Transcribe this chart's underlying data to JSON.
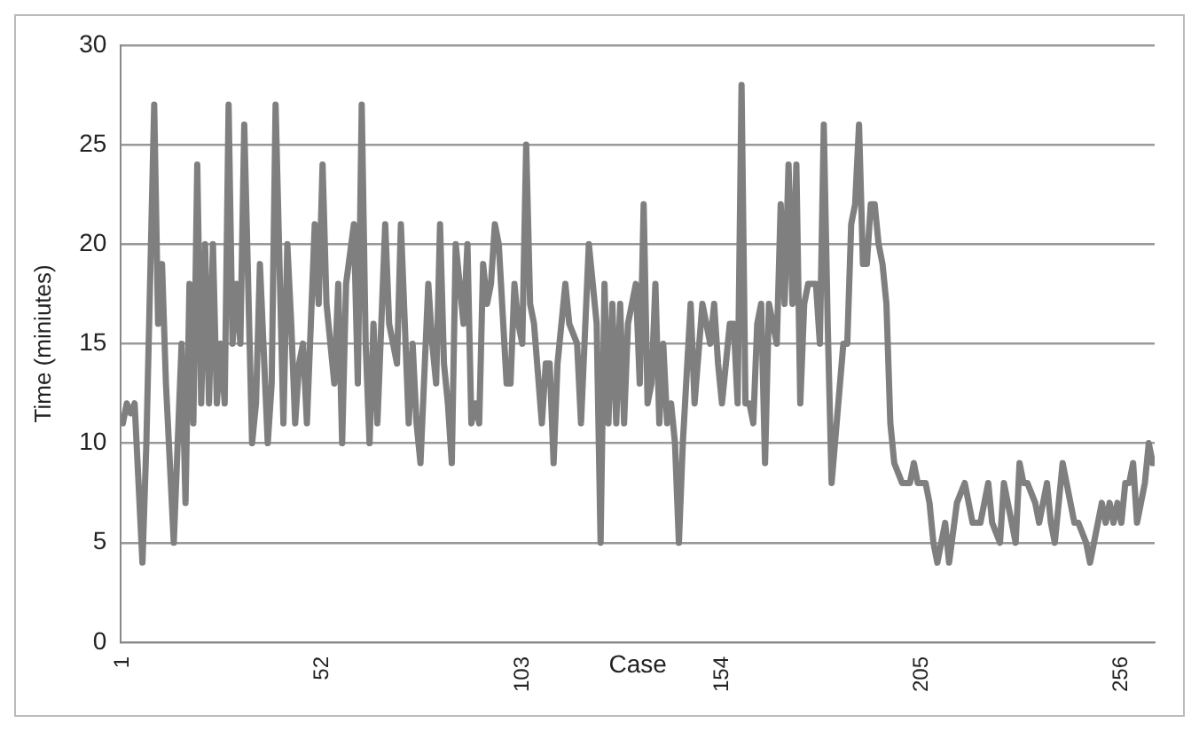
{
  "chart_data": {
    "type": "line",
    "xlabel": "Case",
    "ylabel": "Time (miniutes)",
    "x": [
      1,
      2,
      3,
      4,
      6,
      7,
      9,
      10,
      11,
      12,
      14,
      16,
      17,
      18,
      19,
      20,
      21,
      22,
      23,
      24,
      25,
      26,
      27,
      28,
      29,
      30,
      31,
      32,
      34,
      35,
      36,
      38,
      39,
      40,
      42,
      43,
      44,
      45,
      46,
      47,
      48,
      50,
      51,
      52,
      53,
      55,
      56,
      57,
      58,
      60,
      61,
      62,
      63,
      64,
      65,
      66,
      68,
      69,
      71,
      72,
      74,
      75,
      76,
      77,
      79,
      80,
      81,
      82,
      83,
      84,
      85,
      86,
      88,
      89,
      90,
      91,
      92,
      93,
      94,
      95,
      96,
      97,
      99,
      100,
      101,
      102,
      103,
      104,
      105,
      106,
      108,
      109,
      110,
      111,
      112,
      114,
      115,
      117,
      118,
      120,
      122,
      123,
      124,
      125,
      126,
      127,
      128,
      129,
      130,
      132,
      133,
      134,
      135,
      136,
      137,
      138,
      139,
      140,
      141,
      142,
      143,
      144,
      146,
      147,
      149,
      151,
      152,
      153,
      154,
      156,
      157,
      158,
      159,
      160,
      161,
      162,
      163,
      164,
      165,
      166,
      168,
      169,
      170,
      171,
      172,
      173,
      174,
      175,
      176,
      178,
      179,
      180,
      181,
      182,
      185,
      186,
      187,
      188,
      189,
      190,
      191,
      192,
      193,
      194,
      195,
      196,
      197,
      198,
      200,
      201,
      202,
      203,
      204,
      206,
      207,
      208,
      209,
      210,
      211,
      212,
      214,
      216,
      217,
      218,
      220,
      221,
      222,
      223,
      225,
      226,
      227,
      228,
      229,
      230,
      231,
      232,
      234,
      235,
      236,
      237,
      238,
      239,
      241,
      242,
      243,
      244,
      245,
      247,
      248,
      249,
      250,
      251,
      252,
      253,
      254,
      255,
      256,
      257,
      258,
      259,
      260,
      261,
      262,
      263,
      264
    ],
    "values": [
      11,
      12,
      11.5,
      12,
      4,
      10,
      27,
      16,
      19,
      13,
      5,
      15,
      7,
      18,
      11,
      24,
      12,
      20,
      12,
      20,
      12,
      15,
      12,
      27,
      15,
      18,
      15,
      26,
      10,
      12,
      19,
      10,
      13,
      27,
      11,
      20,
      16,
      11,
      14,
      15,
      11,
      21,
      17,
      24,
      17,
      13,
      18,
      10,
      18,
      21,
      13,
      27,
      15,
      10,
      16,
      11,
      21,
      16,
      14,
      21,
      11,
      15,
      11,
      9,
      18,
      15,
      13,
      21,
      14,
      12,
      9,
      20,
      16,
      20,
      11,
      12,
      11,
      19,
      17,
      18,
      21,
      20,
      13,
      13,
      18,
      16,
      15,
      25,
      17,
      16,
      11,
      14,
      14,
      9,
      14,
      18,
      16,
      15,
      11,
      20,
      16,
      5,
      18,
      11,
      17,
      11,
      17,
      11,
      16,
      18,
      13,
      22,
      12,
      13,
      18,
      11,
      15,
      11,
      12,
      10,
      5,
      10,
      17,
      12,
      17,
      15,
      17,
      14,
      12,
      16,
      16,
      12,
      28,
      12,
      12,
      11,
      16,
      17,
      9,
      17,
      15,
      22,
      17,
      24,
      17,
      24,
      12,
      17,
      18,
      18,
      15,
      26,
      16,
      8,
      15,
      15,
      21,
      22,
      26,
      19,
      19,
      22,
      22,
      20,
      19,
      17,
      11,
      9,
      8,
      8,
      8,
      9,
      8,
      8,
      7,
      5,
      4,
      5,
      6,
      4,
      7,
      8,
      7,
      6,
      6,
      7,
      8,
      6,
      5,
      8,
      7,
      6,
      5,
      9,
      8,
      8,
      7,
      6,
      7,
      8,
      6,
      5,
      9,
      8,
      7,
      6,
      6,
      5,
      4,
      5,
      6,
      7,
      6,
      7,
      6,
      7,
      6,
      8,
      8,
      9,
      6,
      7,
      8,
      10,
      9
    ],
    "color": "#7f7f7f",
    "xlim": [
      0.5,
      264.5
    ],
    "xticks": [
      1,
      52,
      103,
      154,
      205,
      256
    ],
    "ylim": [
      0,
      30
    ],
    "yticks": [
      0,
      5,
      10,
      15,
      20,
      25,
      30
    ],
    "grid": "y",
    "legend": false,
    "marker": "none",
    "line_style": "solid"
  }
}
